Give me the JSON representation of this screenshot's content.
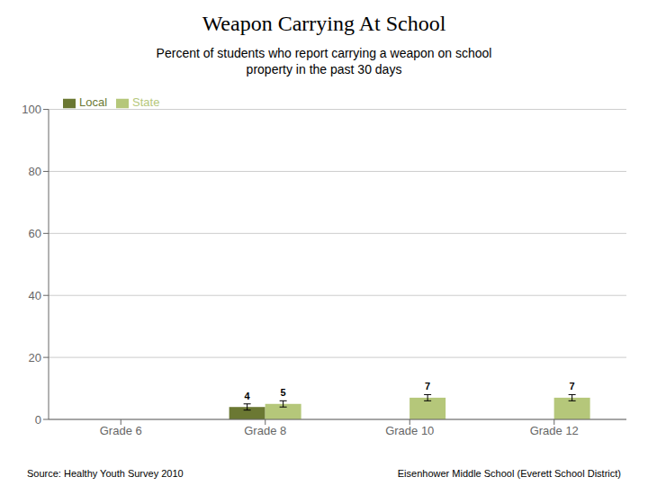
{
  "chart_data": {
    "type": "bar",
    "title": "Weapon Carrying At School",
    "subtitle": "Percent of students who report carrying a weapon on school\nproperty in the past 30 days",
    "categories": [
      "Grade 6",
      "Grade 8",
      "Grade 10",
      "Grade 12"
    ],
    "series": [
      {
        "name": "Local",
        "color": "#6b7833",
        "values": [
          0,
          4,
          0,
          0
        ],
        "errors": [
          0,
          1,
          0,
          0
        ]
      },
      {
        "name": "State",
        "color": "#b5c77a",
        "values": [
          0,
          5,
          7,
          7
        ],
        "errors": [
          0,
          1,
          1,
          1
        ]
      }
    ],
    "ylim": [
      0,
      100
    ],
    "yticks": [
      0,
      20,
      40,
      60,
      80,
      100
    ],
    "grid": true,
    "legend": "upper left",
    "data_labels": true,
    "annotations": [
      "Source: Healthy Youth Survey 2010",
      "Eisenhower Middle School (Everett School District)"
    ]
  }
}
